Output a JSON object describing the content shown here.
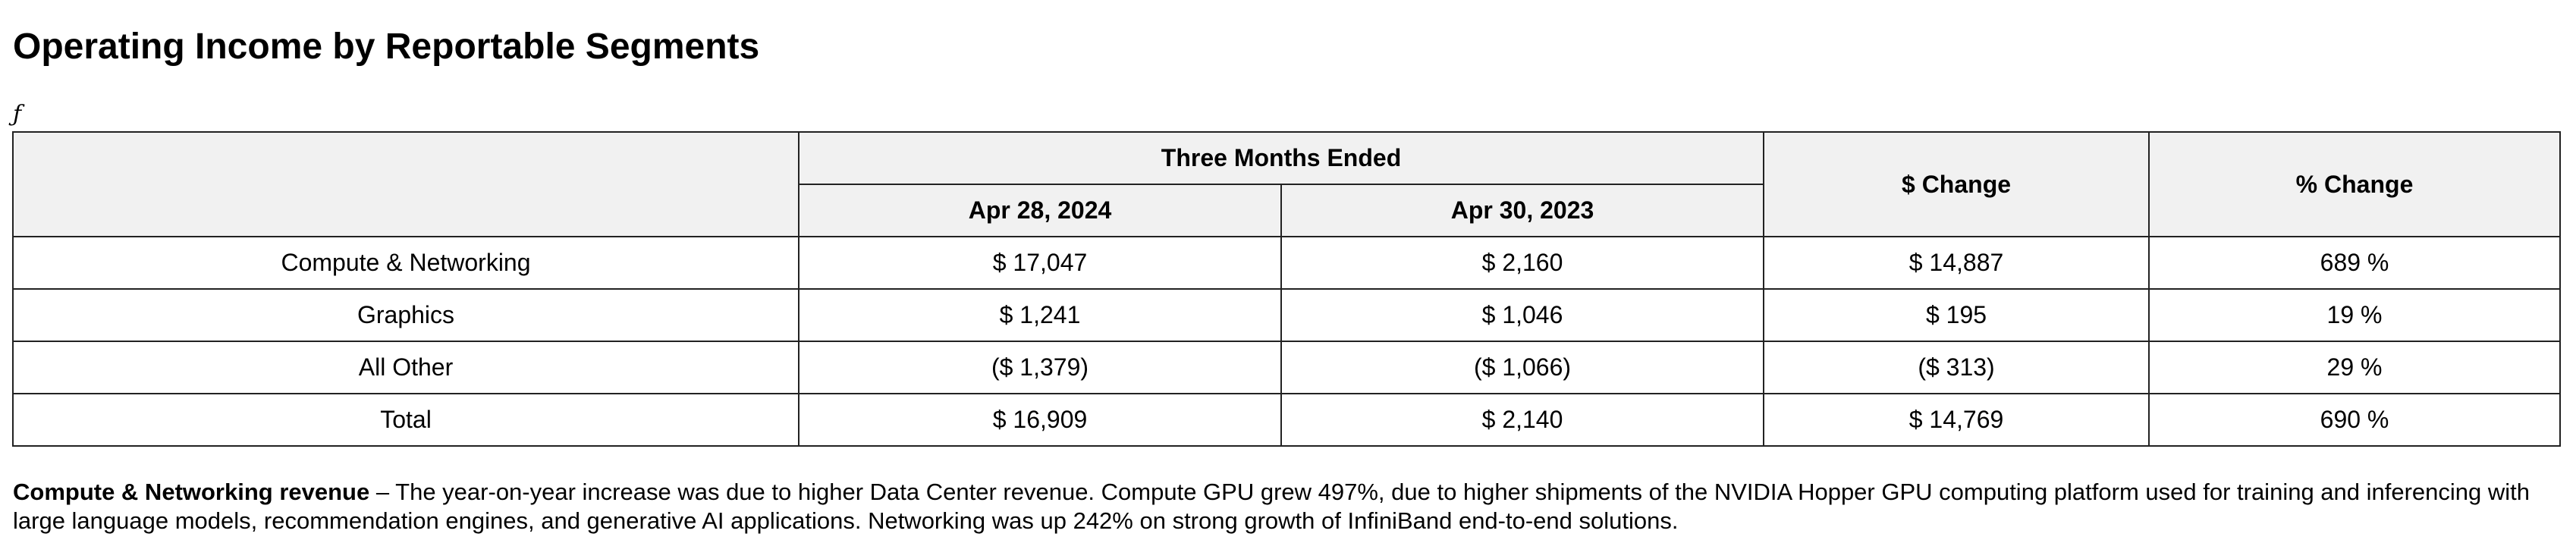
{
  "title": "Operating Income by Reportable Segments",
  "glyph": "ƒ",
  "table": {
    "group_header": "Three Months Ended",
    "period_headers": [
      "Apr 28, 2024",
      "Apr 30, 2023"
    ],
    "change_header": "$ Change",
    "pct_header": "% Change",
    "rows": [
      {
        "label": "Compute & Networking",
        "current": "$ 17,047",
        "prior": "$ 2,160",
        "change": "$ 14,887",
        "pct": "689 %"
      },
      {
        "label": "Graphics",
        "current": "$ 1,241",
        "prior": "$ 1,046",
        "change": "$ 195",
        "pct": "19 %"
      },
      {
        "label": "All Other",
        "current": "($ 1,379)",
        "prior": "($ 1,066)",
        "change": "($ 313)",
        "pct": "29 %"
      },
      {
        "label": "Total",
        "current": "$ 16,909",
        "prior": "$ 2,140",
        "change": "$ 14,769",
        "pct": "690 %"
      }
    ]
  },
  "footnote": {
    "lead": "Compute & Networking revenue",
    "text": " – The year-on-year increase was due to higher Data Center revenue. Compute GPU grew 497%, due to higher shipments of the NVIDIA Hopper GPU computing platform used for training and inferencing with large language models, recommendation engines, and generative AI applications. Networking was up 242% on strong growth of InfiniBand end-to-end solutions."
  }
}
